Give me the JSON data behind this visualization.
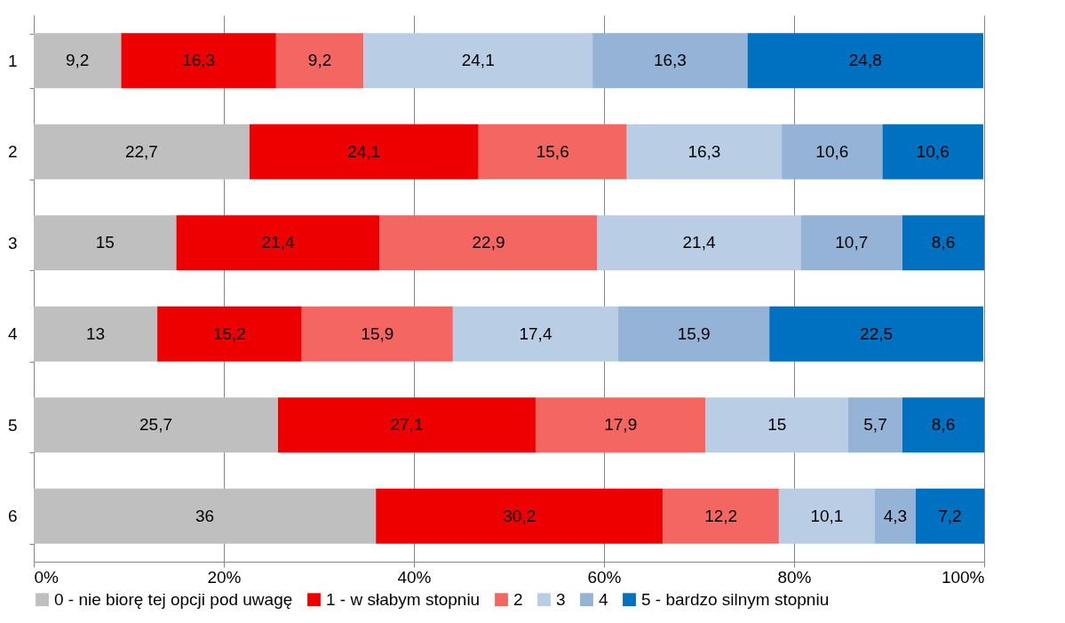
{
  "chart_data": {
    "type": "bar",
    "orientation": "horizontal",
    "stacked": true,
    "categories": [
      "1",
      "2",
      "3",
      "4",
      "5",
      "6"
    ],
    "xlim": [
      0,
      100
    ],
    "xticks": [
      {
        "value": 0,
        "label": "0%"
      },
      {
        "value": 20,
        "label": "20%"
      },
      {
        "value": 40,
        "label": "40%"
      },
      {
        "value": 60,
        "label": "60%"
      },
      {
        "value": 80,
        "label": "80%"
      },
      {
        "value": 100,
        "label": "100%"
      }
    ],
    "grid": "x",
    "legend": "bottom",
    "series": [
      {
        "name": "0 - nie biorę tej opcji pod uwagę",
        "color": "#bfbfbf",
        "values": [
          9.2,
          22.7,
          15,
          13,
          25.7,
          36
        ],
        "value_labels": [
          "9,2",
          "22,7",
          "15",
          "13",
          "25,7",
          "36"
        ]
      },
      {
        "name": "1 - w słabym stopniu",
        "color": "#ee0000",
        "values": [
          16.3,
          24.1,
          21.4,
          15.2,
          27.1,
          30.2
        ],
        "value_labels": [
          "16,3",
          "24,1",
          "21,4",
          "15,2",
          "27,1",
          "30,2"
        ]
      },
      {
        "name": "2",
        "color": "#f46661",
        "values": [
          9.2,
          15.6,
          22.9,
          15.9,
          17.9,
          12.2
        ],
        "value_labels": [
          "9,2",
          "15,6",
          "22,9",
          "15,9",
          "17,9",
          "12,2"
        ]
      },
      {
        "name": "3",
        "color": "#b9cde5",
        "values": [
          24.1,
          16.3,
          21.4,
          17.4,
          15,
          10.1
        ],
        "value_labels": [
          "24,1",
          "16,3",
          "21,4",
          "17,4",
          "15",
          "10,1"
        ]
      },
      {
        "name": "4",
        "color": "#95b3d7",
        "values": [
          16.3,
          10.6,
          10.7,
          15.9,
          5.7,
          4.3
        ],
        "value_labels": [
          "16,3",
          "10,6",
          "10,7",
          "15,9",
          "5,7",
          "4,3"
        ]
      },
      {
        "name": "5 - bardzo silnym stopniu",
        "color": "#0070c0",
        "values": [
          24.8,
          10.6,
          8.6,
          22.5,
          8.6,
          7.2
        ],
        "value_labels": [
          "24,8",
          "10,6",
          "8,6",
          "22,5",
          "8,6",
          "7,2"
        ]
      }
    ]
  }
}
